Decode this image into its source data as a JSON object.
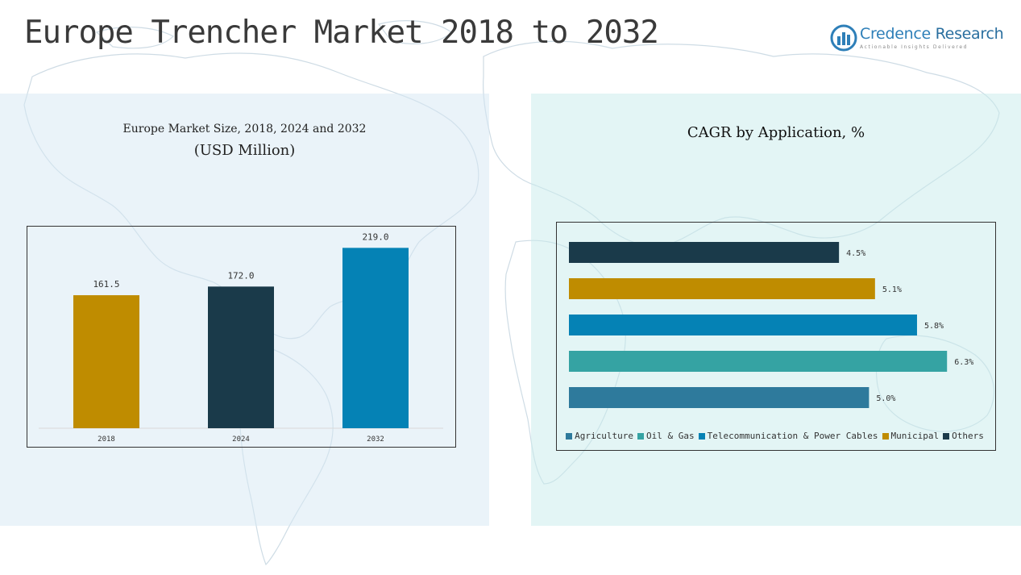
{
  "page_title": "Europe Trencher Market 2018 to 2032",
  "logo": {
    "name_part1": "Credence",
    "name_part2": " Research",
    "tagline": "Actionable Insights Delivered"
  },
  "colors": {
    "gold": "#BF8C00",
    "navy": "#1A3A4A",
    "blue": "#0582B5",
    "teal": "#35A3A3",
    "steel": "#2E7A9C"
  },
  "chart_data": [
    {
      "type": "bar",
      "title": "Europe Market Size, 2018, 2024 and 2032",
      "subtitle": "(USD Million)",
      "categories": [
        "2018",
        "2024",
        "2032"
      ],
      "values": [
        161.5,
        172.0,
        219.0
      ],
      "value_labels": [
        "161.5",
        "172.0",
        "219.0"
      ],
      "colors": [
        "#BF8C00",
        "#1A3A4A",
        "#0582B5"
      ],
      "ylim": [
        0,
        235
      ],
      "grid": false
    },
    {
      "type": "bar",
      "orientation": "horizontal",
      "title": "CAGR by Application, %",
      "categories": [
        "Others",
        "Municipal",
        "Telecommunication & Power Cables",
        "Oil & Gas",
        "Agriculture"
      ],
      "values": [
        4.5,
        5.1,
        5.8,
        6.3,
        5.0
      ],
      "value_labels": [
        "4.5%",
        "5.1%",
        "5.8%",
        "6.3%",
        "5.0%"
      ],
      "colors": [
        "#1A3A4A",
        "#BF8C00",
        "#0582B5",
        "#35A3A3",
        "#2E7A9C"
      ],
      "xlim": [
        0,
        6.7
      ],
      "grid": false,
      "legend_position": "bottom",
      "legend": [
        {
          "label": "Agriculture",
          "color": "#2E7A9C"
        },
        {
          "label": "Oil & Gas",
          "color": "#35A3A3"
        },
        {
          "label": "Telecommunication & Power Cables",
          "color": "#0582B5"
        },
        {
          "label": "Municipal",
          "color": "#BF8C00"
        },
        {
          "label": "Others",
          "color": "#1A3A4A"
        }
      ]
    }
  ]
}
